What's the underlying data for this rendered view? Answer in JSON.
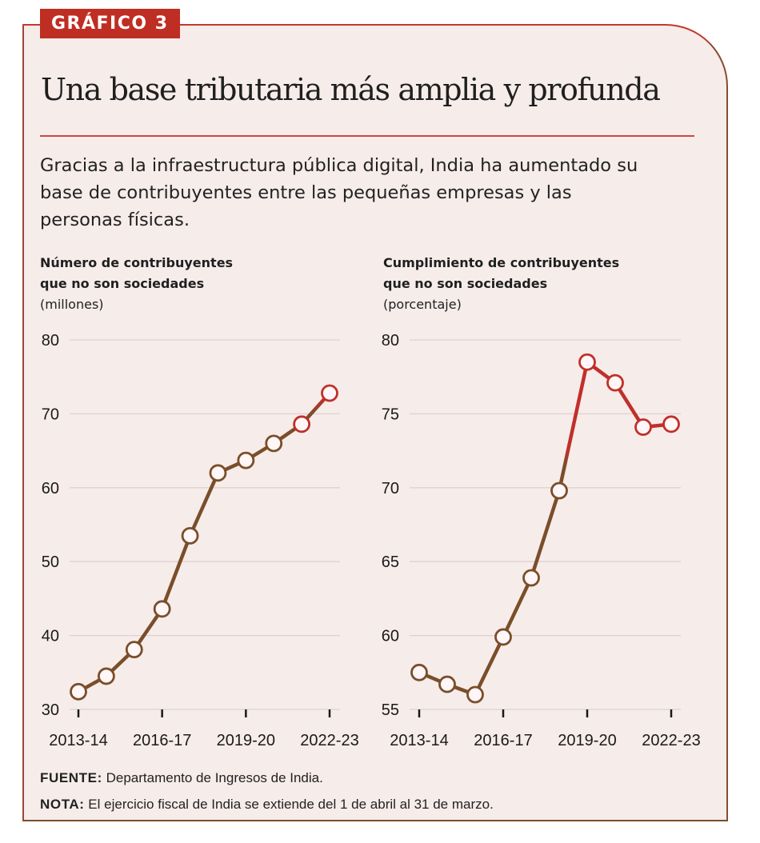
{
  "badge": "GRÁFICO 3",
  "title": "Una base tributaria más amplia y profunda",
  "subtitle": "Gracias a la infraestructura pública digital, India ha aumentado su base de contribuyentes entre las pequeñas empresas y las personas físicas.",
  "colors": {
    "accent": "#bf2e23",
    "line_start": "#7a4e2a",
    "line_end": "#c0302a",
    "background": "#f6ecea",
    "gridline": "#ddd2d0"
  },
  "footer": {
    "source_label": "FUENTE:",
    "source_text": "Departamento de Ingresos de India.",
    "note_label": "NOTA:",
    "note_text": "El ejercicio fiscal de India se extiende del 1 de abril al 31 de marzo."
  },
  "chart_data": [
    {
      "type": "line",
      "title": "Número de contribuyentes que no son sociedades",
      "title_line1": "Número de contribuyentes",
      "title_line2": "que no son sociedades",
      "ylabel": "(millones)",
      "xlabel": "",
      "x": [
        "2013-14",
        "2014-15",
        "2015-16",
        "2016-17",
        "2017-18",
        "2018-19",
        "2019-20",
        "2020-21",
        "2021-22",
        "2022-23"
      ],
      "x_tick_labels": [
        "2013-14",
        "2016-17",
        "2019-20",
        "2022-23"
      ],
      "y_ticks": [
        30,
        40,
        50,
        60,
        70,
        80
      ],
      "ylim": [
        30,
        80
      ],
      "grid": true,
      "series": [
        {
          "name": "Contribuyentes no sociedades (millones)",
          "values": [
            32.4,
            34.5,
            38.1,
            43.6,
            53.5,
            62.0,
            63.7,
            66.0,
            68.6,
            72.8
          ]
        }
      ]
    },
    {
      "type": "line",
      "title": "Cumplimiento de contribuyentes que no son sociedades",
      "title_line1": "Cumplimiento de contribuyentes",
      "title_line2": "que no son sociedades",
      "ylabel": "(porcentaje)",
      "xlabel": "",
      "x": [
        "2013-14",
        "2014-15",
        "2015-16",
        "2016-17",
        "2017-18",
        "2018-19",
        "2019-20",
        "2020-21",
        "2021-22",
        "2022-23"
      ],
      "x_tick_labels": [
        "2013-14",
        "2016-17",
        "2019-20",
        "2022-23"
      ],
      "y_ticks": [
        55,
        60,
        65,
        70,
        75,
        80
      ],
      "ylim": [
        55,
        80
      ],
      "grid": true,
      "series": [
        {
          "name": "Cumplimiento (porcentaje)",
          "values": [
            57.5,
            56.7,
            56.0,
            59.9,
            63.9,
            69.8,
            78.5,
            77.1,
            74.1,
            74.3
          ]
        }
      ]
    }
  ]
}
